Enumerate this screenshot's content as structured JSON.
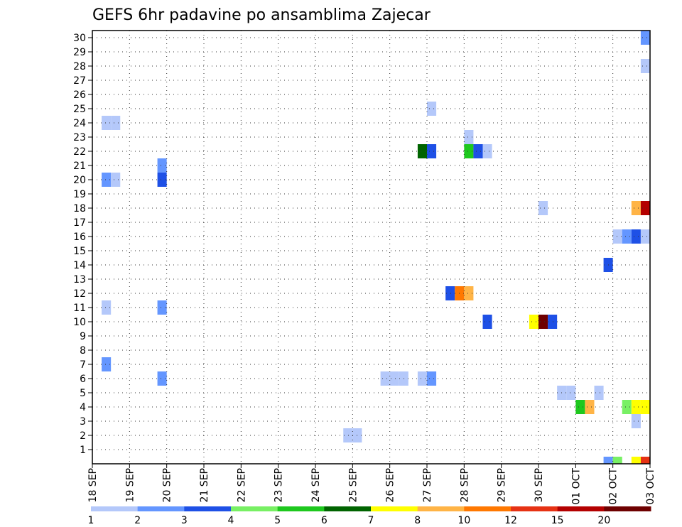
{
  "chart_data": {
    "type": "heatmap",
    "title": "GEFS 6hr padavine po ansamblima Zajecar",
    "y_axis": {
      "ticks": [
        1,
        2,
        3,
        4,
        5,
        6,
        7,
        8,
        9,
        10,
        11,
        12,
        13,
        14,
        15,
        16,
        17,
        18,
        19,
        20,
        21,
        22,
        23,
        24,
        25,
        26,
        27,
        28,
        29,
        30
      ],
      "range": [
        0,
        30
      ]
    },
    "x_axis": {
      "range_days": [
        0,
        15
      ],
      "ticks": [
        "18 SEP",
        "19 SEP",
        "20 SEP",
        "21 SEP",
        "22 SEP",
        "23 SEP",
        "24 SEP",
        "25 SEP",
        "26 SEP",
        "27 SEP",
        "28 SEP",
        "29 SEP",
        "30 SEP",
        "01 OCT",
        "02 OCT",
        "03 OCT"
      ],
      "step_hours": 6
    },
    "grid": true,
    "legend": {
      "placement": "bottom",
      "labels": [
        "1",
        "2",
        "3",
        "4",
        "5",
        "6",
        "7",
        "8",
        "10",
        "12",
        "15",
        "20"
      ],
      "colors": [
        "#b4c8fa",
        "#6496ff",
        "#1e50e6",
        "#78f064",
        "#1ec81e",
        "#006400",
        "#ffff00",
        "#ffb446",
        "#ff7800",
        "#e63214",
        "#b40000",
        "#6e0000"
      ]
    },
    "cells": [
      {
        "member": 30,
        "step": 60,
        "color": "#6496ff"
      },
      {
        "member": 28,
        "step": 60,
        "color": "#b4c8fa"
      },
      {
        "member": 25,
        "step": 37,
        "color": "#b4c8fa"
      },
      {
        "member": 24,
        "step": 2,
        "color": "#b4c8fa"
      },
      {
        "member": 24,
        "step": 3,
        "color": "#b4c8fa"
      },
      {
        "member": 23,
        "step": 41,
        "color": "#b4c8fa"
      },
      {
        "member": 22,
        "step": 36,
        "color": "#006400"
      },
      {
        "member": 22,
        "step": 37,
        "color": "#1e50e6"
      },
      {
        "member": 22,
        "step": 41,
        "color": "#1ec81e"
      },
      {
        "member": 22,
        "step": 42,
        "color": "#1e50e6"
      },
      {
        "member": 22,
        "step": 43,
        "color": "#b4c8fa"
      },
      {
        "member": 21,
        "step": 8,
        "color": "#6496ff"
      },
      {
        "member": 20,
        "step": 2,
        "color": "#6496ff"
      },
      {
        "member": 20,
        "step": 3,
        "color": "#b4c8fa"
      },
      {
        "member": 20,
        "step": 8,
        "color": "#1e50e6"
      },
      {
        "member": 18,
        "step": 49,
        "color": "#b4c8fa"
      },
      {
        "member": 18,
        "step": 59,
        "color": "#ffb446"
      },
      {
        "member": 18,
        "step": 60,
        "color": "#b40000"
      },
      {
        "member": 16,
        "step": 57,
        "color": "#b4c8fa"
      },
      {
        "member": 16,
        "step": 58,
        "color": "#6496ff"
      },
      {
        "member": 16,
        "step": 59,
        "color": "#1e50e6"
      },
      {
        "member": 16,
        "step": 60,
        "color": "#b4c8fa"
      },
      {
        "member": 14,
        "step": 56,
        "color": "#1e50e6"
      },
      {
        "member": 12,
        "step": 39,
        "color": "#1e50e6"
      },
      {
        "member": 12,
        "step": 40,
        "color": "#ff7800"
      },
      {
        "member": 12,
        "step": 41,
        "color": "#ffb446"
      },
      {
        "member": 11,
        "step": 2,
        "color": "#b4c8fa"
      },
      {
        "member": 11,
        "step": 8,
        "color": "#6496ff"
      },
      {
        "member": 10,
        "step": 43,
        "color": "#1e50e6"
      },
      {
        "member": 10,
        "step": 48,
        "color": "#ffff00"
      },
      {
        "member": 10,
        "step": 49,
        "color": "#6e0000"
      },
      {
        "member": 10,
        "step": 50,
        "color": "#1e50e6"
      },
      {
        "member": 7,
        "step": 2,
        "color": "#6496ff"
      },
      {
        "member": 6,
        "step": 8,
        "color": "#6496ff"
      },
      {
        "member": 6,
        "step": 32,
        "color": "#b4c8fa"
      },
      {
        "member": 6,
        "step": 33,
        "color": "#b4c8fa"
      },
      {
        "member": 6,
        "step": 34,
        "color": "#b4c8fa"
      },
      {
        "member": 6,
        "step": 36,
        "color": "#b4c8fa"
      },
      {
        "member": 6,
        "step": 37,
        "color": "#6496ff"
      },
      {
        "member": 5,
        "step": 51,
        "color": "#b4c8fa"
      },
      {
        "member": 5,
        "step": 52,
        "color": "#b4c8fa"
      },
      {
        "member": 5,
        "step": 55,
        "color": "#b4c8fa"
      },
      {
        "member": 4,
        "step": 53,
        "color": "#1ec81e"
      },
      {
        "member": 4,
        "step": 54,
        "color": "#ffb446"
      },
      {
        "member": 4,
        "step": 58,
        "color": "#78f064"
      },
      {
        "member": 4,
        "step": 59,
        "color": "#ffff00"
      },
      {
        "member": 4,
        "step": 60,
        "color": "#ffff00"
      },
      {
        "member": 3,
        "step": 59,
        "color": "#b4c8fa"
      },
      {
        "member": 2,
        "step": 28,
        "color": "#b4c8fa"
      },
      {
        "member": 2,
        "step": 29,
        "color": "#b4c8fa"
      },
      {
        "member": 0,
        "step": 56,
        "color": "#6496ff"
      },
      {
        "member": 0,
        "step": 57,
        "color": "#78f064"
      },
      {
        "member": 0,
        "step": 59,
        "color": "#ffff00"
      },
      {
        "member": 0,
        "step": 60,
        "color": "#e63214"
      }
    ]
  }
}
